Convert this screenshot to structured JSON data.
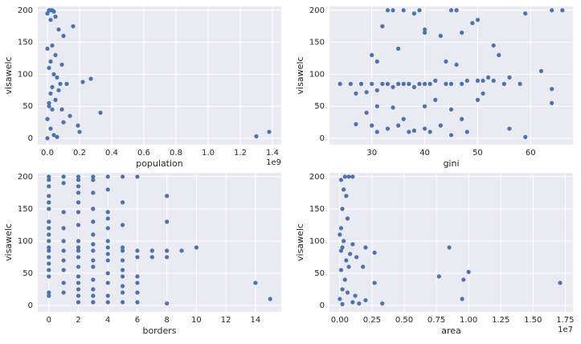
{
  "chart_data": [
    {
      "type": "scatter",
      "xlabel": "population",
      "ylabel": "visawelc",
      "x_offset_label": "1e9",
      "color": "#4c72b0",
      "grid": true,
      "xlim": [
        -0.06,
        1.455
      ],
      "ylim": [
        -10,
        206
      ],
      "xticks": [
        {
          "value": 0,
          "label": "0.0"
        },
        0.2,
        0.4,
        0.6,
        0.8,
        {
          "value": 1,
          "label": "1.0"
        },
        1.2,
        1.4
      ],
      "yticks": [
        0,
        50,
        100,
        150,
        200
      ],
      "x": [
        0.01,
        0.02,
        0.03,
        0,
        0.04,
        0.05,
        0.02,
        0.16,
        0.1,
        0.07,
        0.03,
        0,
        0.05,
        0.02,
        0.09,
        0.01,
        0.04,
        0.22,
        0.27,
        0.06,
        0.08,
        0.12,
        0.03,
        0.02,
        0.05,
        0.01,
        0.09,
        0.14,
        0.33,
        0,
        0.1,
        0.19,
        0.2,
        0.02,
        0.04,
        0,
        0.06,
        1.3,
        1.38,
        0.01,
        0.03,
        0.07
      ],
      "y": [
        200,
        200,
        200,
        195,
        198,
        190,
        185,
        175,
        160,
        170,
        145,
        140,
        130,
        120,
        115,
        110,
        100,
        88,
        93,
        95,
        85,
        85,
        80,
        70,
        60,
        55,
        45,
        35,
        40,
        30,
        25,
        20,
        10,
        15,
        5,
        0,
        2,
        3,
        10,
        50,
        45,
        75
      ]
    },
    {
      "type": "scatter",
      "xlabel": "gini",
      "ylabel": "visawelc",
      "color": "#4c72b0",
      "grid": true,
      "xlim": [
        22,
        68
      ],
      "ylim": [
        -10,
        206
      ],
      "xticks": [
        30,
        40,
        50,
        60
      ],
      "yticks": [
        0,
        50,
        100,
        150,
        200
      ],
      "x": [
        24,
        26,
        27,
        28,
        29,
        30,
        31,
        32,
        33,
        34,
        35,
        36,
        37,
        38,
        39,
        40,
        41,
        42,
        44,
        45,
        47,
        48,
        50,
        51,
        52,
        53,
        55,
        56,
        58,
        30,
        31,
        32,
        33,
        34,
        36,
        38,
        39,
        40,
        40,
        43,
        45,
        46,
        47,
        49,
        50,
        59,
        64,
        66,
        62,
        64,
        64,
        56,
        59,
        27,
        30,
        31,
        33,
        35,
        37,
        38,
        40,
        41,
        43,
        45,
        48,
        29,
        31,
        34,
        36,
        40,
        42,
        45,
        47,
        50,
        54,
        53,
        51,
        44,
        46,
        35
      ],
      "y": [
        85,
        85,
        70,
        85,
        72,
        85,
        75,
        85,
        85,
        80,
        85,
        85,
        85,
        80,
        85,
        85,
        85,
        90,
        85,
        85,
        85,
        90,
        90,
        90,
        95,
        90,
        85,
        95,
        85,
        130,
        120,
        175,
        200,
        200,
        200,
        195,
        200,
        170,
        165,
        160,
        200,
        200,
        165,
        180,
        185,
        195,
        200,
        200,
        105,
        77,
        55,
        15,
        2,
        22,
        20,
        10,
        15,
        20,
        10,
        12,
        15,
        10,
        20,
        5,
        10,
        40,
        50,
        48,
        30,
        50,
        60,
        45,
        30,
        60,
        130,
        145,
        70,
        120,
        115,
        140
      ]
    },
    {
      "type": "scatter",
      "xlabel": "borders",
      "ylabel": "visawelc",
      "color": "#4c72b0",
      "grid": true,
      "xlim": [
        -0.75,
        15.75
      ],
      "ylim": [
        -10,
        206
      ],
      "xticks": [
        0,
        2,
        4,
        6,
        8,
        10,
        12,
        14
      ],
      "yticks": [
        0,
        50,
        100,
        150,
        200
      ],
      "x": [
        0,
        0,
        0,
        0,
        0,
        0,
        0,
        0,
        0,
        0,
        0,
        0,
        0,
        0,
        0,
        0,
        0,
        0,
        1,
        1,
        1,
        1,
        1,
        1,
        1,
        1,
        1,
        1,
        2,
        2,
        2,
        2,
        2,
        2,
        2,
        2,
        2,
        2,
        2,
        2,
        2,
        2,
        2,
        2,
        2,
        3,
        3,
        3,
        3,
        3,
        3,
        3,
        3,
        3,
        3,
        3,
        3,
        3,
        3,
        4,
        4,
        4,
        4,
        4,
        4,
        4,
        4,
        4,
        4,
        4,
        4,
        4,
        5,
        5,
        5,
        5,
        5,
        5,
        5,
        5,
        5,
        5,
        5,
        6,
        6,
        6,
        6,
        6,
        6,
        6,
        7,
        7,
        8,
        8,
        8,
        8,
        8,
        9,
        10,
        14,
        15
      ],
      "y": [
        200,
        195,
        185,
        170,
        160,
        150,
        130,
        120,
        110,
        100,
        90,
        85,
        75,
        65,
        55,
        45,
        20,
        15,
        200,
        190,
        145,
        120,
        100,
        85,
        70,
        55,
        35,
        20,
        200,
        195,
        185,
        175,
        160,
        145,
        125,
        100,
        90,
        85,
        75,
        60,
        45,
        35,
        25,
        15,
        5,
        200,
        195,
        175,
        150,
        130,
        110,
        95,
        85,
        70,
        60,
        40,
        25,
        15,
        5,
        200,
        180,
        145,
        135,
        120,
        100,
        90,
        80,
        70,
        50,
        35,
        15,
        5,
        200,
        160,
        125,
        90,
        85,
        70,
        55,
        45,
        30,
        20,
        5,
        200,
        85,
        75,
        45,
        35,
        20,
        5,
        85,
        75,
        170,
        130,
        85,
        75,
        3,
        85,
        90,
        35,
        10
      ]
    },
    {
      "type": "scatter",
      "xlabel": "area",
      "ylabel": "visawelc",
      "x_offset_label": "1e7",
      "color": "#4c72b0",
      "grid": true,
      "xlim": [
        -0.08,
        1.81
      ],
      "ylim": [
        -10,
        206
      ],
      "xticks": [
        {
          "value": 0,
          "label": "0.00"
        },
        0.25,
        {
          "value": 0.5,
          "label": "0.50"
        },
        0.75,
        {
          "value": 1,
          "label": "1.00"
        },
        1.25,
        {
          "value": 1.5,
          "label": "1.50"
        },
        1.75
      ],
      "yticks": [
        0,
        50,
        100,
        150,
        200
      ],
      "x": [
        0.77,
        0.85,
        0.96,
        1.0,
        0.95,
        1.71,
        0.33,
        0.27,
        0.27,
        0.2,
        0.18,
        0.1,
        0.13,
        0.08,
        0.1,
        0.07,
        0.04,
        0.01,
        0.03,
        0.05,
        0.02,
        0.06,
        0.01,
        0,
        0.03,
        0.02,
        0.05,
        0.01,
        0.04,
        0.02,
        0.06,
        0,
        0.1,
        0.15,
        0.2,
        0.12,
        0.02,
        0.07,
        0.01
      ],
      "y": [
        45,
        90,
        40,
        52,
        10,
        35,
        3,
        35,
        82,
        90,
        60,
        95,
        75,
        80,
        200,
        200,
        200,
        195,
        180,
        170,
        150,
        135,
        120,
        110,
        100,
        90,
        70,
        55,
        40,
        25,
        20,
        10,
        5,
        3,
        8,
        15,
        2,
        60,
        85
      ]
    }
  ]
}
